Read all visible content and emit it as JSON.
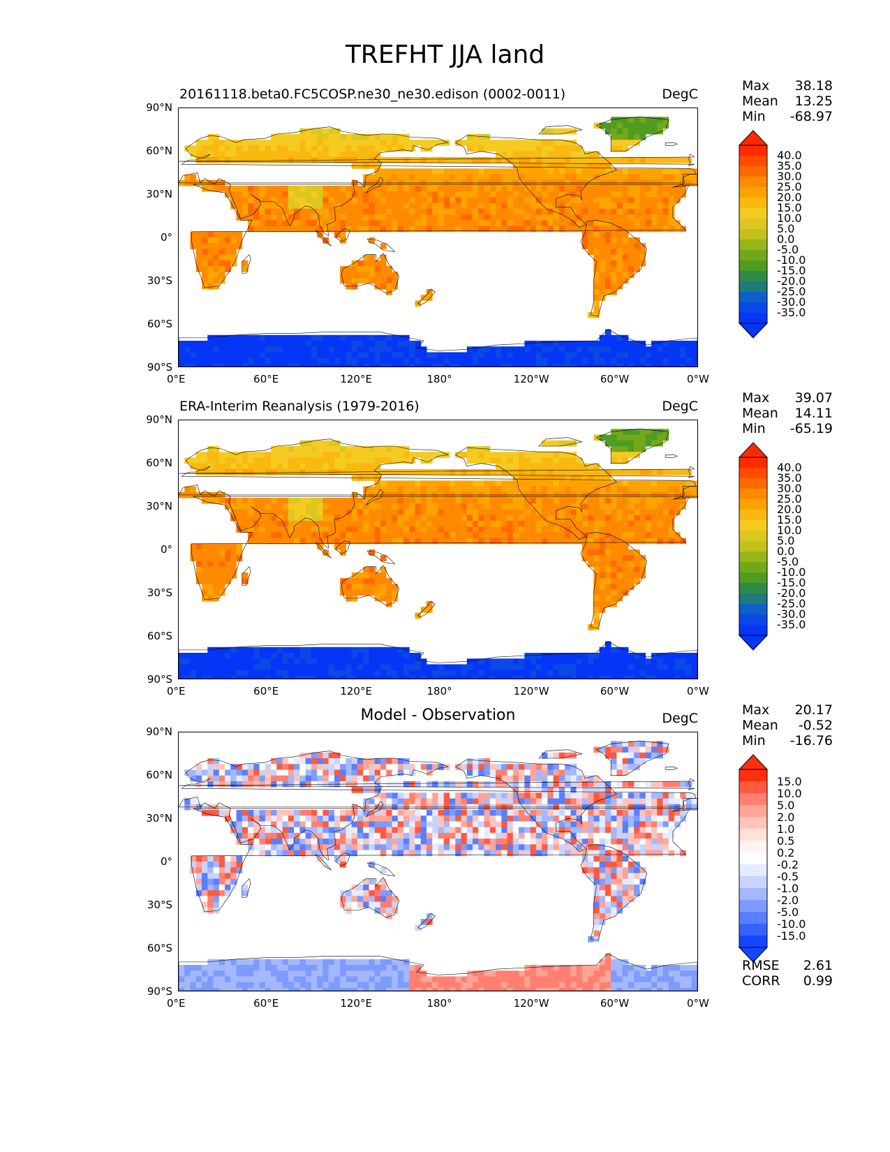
{
  "figure_title": "TREFHT JJA land",
  "lon_ticks": [
    "0°E",
    "60°E",
    "120°E",
    "180°",
    "120°W",
    "60°W",
    "0°W"
  ],
  "lat_ticks": [
    "90°N",
    "60°N",
    "30°N",
    "0°",
    "30°S",
    "60°S",
    "90°S"
  ],
  "panels": [
    {
      "title": "20161118.beta0.FC5COSP.ne30_ne30.edison (0002-0011)",
      "units": "DegC",
      "stats": [
        {
          "label": "Max",
          "value": "38.18"
        },
        {
          "label": "Mean",
          "value": "13.25"
        },
        {
          "label": "Min",
          "value": "-68.97"
        }
      ],
      "colorbar_levels": [
        "40.0",
        "35.0",
        "30.0",
        "25.0",
        "20.0",
        "15.0",
        "10.0",
        "5.0",
        "0.0",
        "-5.0",
        "-10.0",
        "-15.0",
        "-20.0",
        "-25.0",
        "-30.0",
        "-35.0"
      ],
      "colorbar_colors": [
        "#ff2a00",
        "#ff4c00",
        "#ff6a00",
        "#ff8a00",
        "#fda300",
        "#f9b910",
        "#f5cb22",
        "#dcc720",
        "#c3c11c",
        "#99b619",
        "#73a81a",
        "#4f9c22",
        "#2f8a4a",
        "#1f7a7c",
        "#0f5fc8",
        "#0a48e8",
        "#0535f5"
      ],
      "colorbar_over": "#ff2a00",
      "colorbar_under": "#0535f5",
      "map_palette": "temp"
    },
    {
      "title": "ERA-Interim Reanalysis (1979-2016)",
      "units": "DegC",
      "stats": [
        {
          "label": "Max",
          "value": "39.07"
        },
        {
          "label": "Mean",
          "value": "14.11"
        },
        {
          "label": "Min",
          "value": "-65.19"
        }
      ],
      "colorbar_levels": [
        "40.0",
        "35.0",
        "30.0",
        "25.0",
        "20.0",
        "15.0",
        "10.0",
        "5.0",
        "0.0",
        "-5.0",
        "-10.0",
        "-15.0",
        "-20.0",
        "-25.0",
        "-30.0",
        "-35.0"
      ],
      "colorbar_colors": [
        "#ff2a00",
        "#ff4c00",
        "#ff6a00",
        "#ff8a00",
        "#fda300",
        "#f9b910",
        "#f5cb22",
        "#dcc720",
        "#c3c11c",
        "#99b619",
        "#73a81a",
        "#4f9c22",
        "#2f8a4a",
        "#1f7a7c",
        "#0f5fc8",
        "#0a48e8",
        "#0535f5"
      ],
      "colorbar_over": "#ff2a00",
      "colorbar_under": "#0535f5",
      "map_palette": "temp"
    },
    {
      "title": "Model - Observation",
      "units": "DegC",
      "stats": [
        {
          "label": "Max",
          "value": "20.17"
        },
        {
          "label": "Mean",
          "value": "-0.52"
        },
        {
          "label": "Min",
          "value": "-16.76"
        }
      ],
      "extra_stats": [
        {
          "label": "RMSE",
          "value": "2.61"
        },
        {
          "label": "CORR",
          "value": "0.99"
        }
      ],
      "colorbar_levels": [
        "15.0",
        "10.0",
        "5.0",
        "2.0",
        "1.0",
        "0.5",
        "0.2",
        "-0.2",
        "-0.5",
        "-1.0",
        "-2.0",
        "-5.0",
        "-10.0",
        "-15.0"
      ],
      "colorbar_colors": [
        "#ff3010",
        "#ff5a40",
        "#ff8070",
        "#ffa498",
        "#ffc4bc",
        "#ffe0da",
        "#fff4f2",
        "#ffffff",
        "#e6ecff",
        "#c8d4ff",
        "#a4b8ff",
        "#7e9bff",
        "#5a7eff",
        "#3662ff",
        "#1446ff"
      ],
      "colorbar_over": "#ff3010",
      "colorbar_under": "#1446ff",
      "map_palette": "diff"
    }
  ]
}
